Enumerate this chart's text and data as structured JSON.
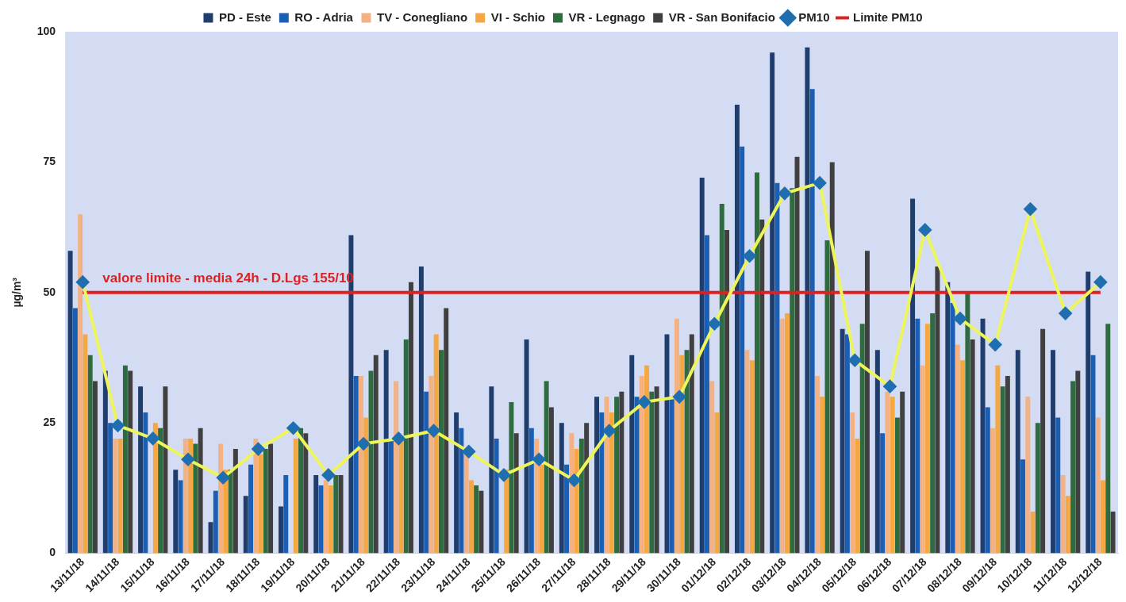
{
  "chart_data": {
    "type": "bar",
    "ylabel": "µg/m³",
    "ylim": [
      0,
      100
    ],
    "yticks": [
      0,
      25,
      50,
      75,
      100
    ],
    "grid": false,
    "legend": "top",
    "categories": [
      "13/11/18",
      "14/11/18",
      "15/11/18",
      "16/11/18",
      "17/11/18",
      "18/11/18",
      "19/11/18",
      "20/11/18",
      "21/11/18",
      "22/11/18",
      "23/11/18",
      "24/11/18",
      "25/11/18",
      "26/11/18",
      "27/11/18",
      "28/11/18",
      "29/11/18",
      "30/11/18",
      "01/12/18",
      "02/12/18",
      "03/12/18",
      "04/12/18",
      "05/12/18",
      "06/12/18",
      "07/12/18",
      "08/12/18",
      "09/12/18",
      "10/12/18",
      "11/12/18",
      "12/12/18"
    ],
    "series": [
      {
        "name": "PD - Este",
        "color": "#1f3e6e",
        "values": [
          58,
          35,
          32,
          16,
          6,
          11,
          9,
          15,
          61,
          39,
          55,
          27,
          32,
          41,
          25,
          30,
          38,
          42,
          72,
          86,
          96,
          97,
          43,
          39,
          68,
          52,
          45,
          39,
          39,
          54
        ]
      },
      {
        "name": "RO - Adria",
        "color": "#1a5fb4",
        "values": [
          47,
          25,
          27,
          14,
          12,
          17,
          15,
          13,
          34,
          22,
          31,
          24,
          22,
          24,
          17,
          27,
          30,
          30,
          61,
          78,
          71,
          89,
          42,
          23,
          45,
          48,
          28,
          18,
          26,
          38
        ]
      },
      {
        "name": "TV - Conegliano",
        "color": "#f4b183",
        "values": [
          65,
          22,
          null,
          22,
          21,
          22,
          null,
          14,
          34,
          33,
          34,
          19,
          null,
          22,
          23,
          30,
          34,
          45,
          33,
          39,
          45,
          34,
          27,
          31,
          36,
          40,
          24,
          30,
          15,
          26
        ]
      },
      {
        "name": "VI - Schio",
        "color": "#f5a742",
        "values": [
          42,
          22,
          25,
          22,
          16,
          19,
          22,
          13,
          26,
          22,
          42,
          14,
          16,
          17,
          20,
          27,
          36,
          38,
          27,
          37,
          46,
          30,
          22,
          30,
          44,
          37,
          36,
          8,
          11,
          14
        ]
      },
      {
        "name": "VR - Legnago",
        "color": "#2e6b3e",
        "values": [
          38,
          36,
          24,
          21,
          16,
          20,
          24,
          15,
          35,
          41,
          39,
          13,
          29,
          33,
          22,
          30,
          31,
          39,
          67,
          73,
          70,
          60,
          44,
          26,
          46,
          50,
          32,
          25,
          33,
          44
        ]
      },
      {
        "name": "VR - San Bonifacio",
        "color": "#404040",
        "values": [
          33,
          35,
          32,
          24,
          20,
          21,
          23,
          15,
          38,
          52,
          47,
          12,
          23,
          28,
          25,
          31,
          32,
          42,
          62,
          64,
          76,
          75,
          58,
          31,
          55,
          41,
          34,
          43,
          35,
          8
        ]
      },
      {
        "name": "PM10",
        "type": "line",
        "marker": "diamond",
        "color": "#eef55a",
        "colors": [
          "#1f6fb0",
          "#1f6fb0",
          "#1f6fb0",
          "#1f6fb0",
          "#1f6fb0",
          "#1f6fb0",
          "#1f6fb0",
          "#1f6fb0",
          "#1f6fb0",
          "#1f6fb0",
          "#1f6fb0",
          "#1f6fb0",
          "#1f6fb0",
          "#1f6fb0",
          "#1f6fb0",
          "#1f6fb0",
          "#1f6fb0",
          "#1f6fb0",
          "#1f6fb0",
          "#1f6fb0",
          "#1f6fb0",
          "#1f6fb0",
          "#1f6fb0",
          "#1f6fb0",
          "#1f6fb0",
          "#1f6fb0",
          "#1f6fb0",
          "#1f6fb0",
          "#1f6fb0",
          "#1f6fb0"
        ],
        "values": [
          52,
          24.5,
          22,
          18,
          14.5,
          20,
          24,
          15,
          21,
          22,
          23.5,
          19.5,
          15,
          18,
          14,
          23.5,
          29,
          30,
          44,
          57,
          69,
          71,
          37,
          32,
          62,
          45,
          40,
          66,
          46,
          52
        ]
      },
      {
        "name": "Limite PM10",
        "type": "line",
        "marker": "none",
        "color": "#e02020",
        "values": [
          50,
          50,
          50,
          50,
          50,
          50,
          50,
          50,
          50,
          50,
          50,
          50,
          50,
          50,
          50,
          50,
          50,
          50,
          50,
          50,
          50,
          50,
          50,
          50,
          50,
          50,
          50,
          50,
          50,
          50
        ]
      }
    ],
    "annotations": [
      {
        "text": "valore limite - media 24h - D.Lgs 155/10",
        "x": "13/11/18",
        "y": 50
      }
    ]
  }
}
